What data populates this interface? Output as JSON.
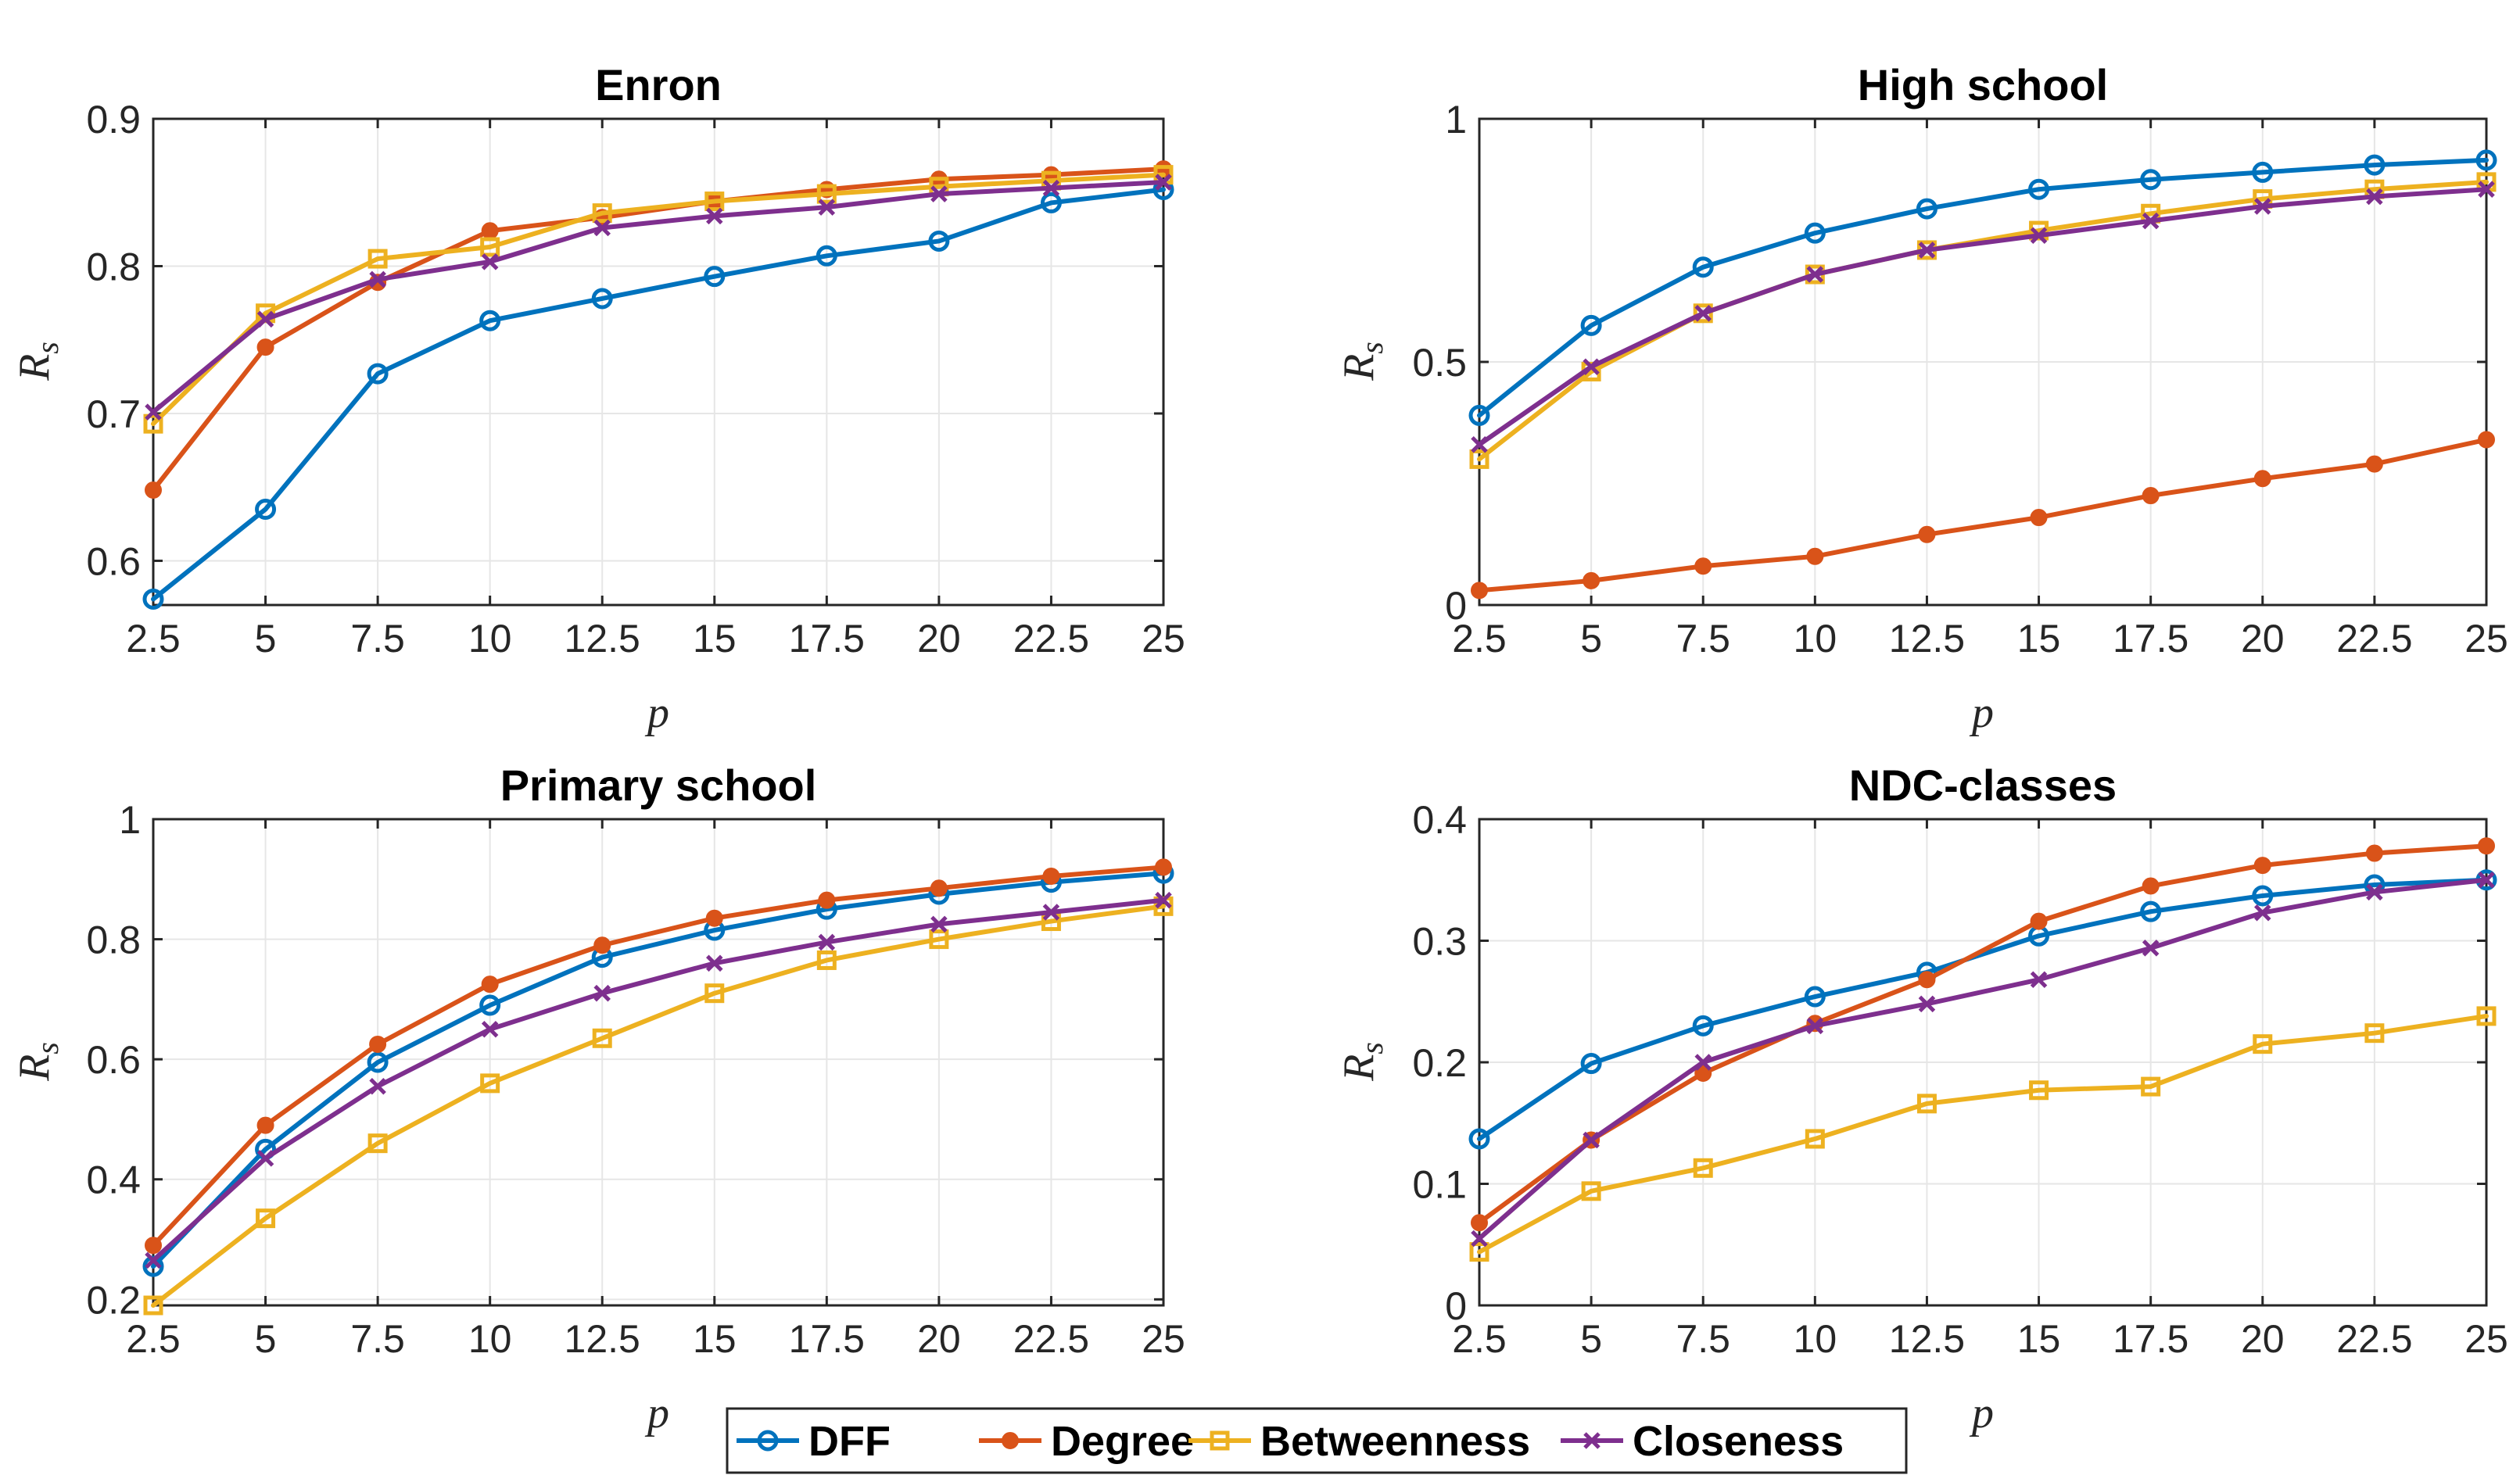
{
  "chart_data": [
    {
      "type": "line",
      "title": "Enron",
      "xlabel": "p",
      "ylabel": "R",
      "ylabel_sub": "s",
      "x": [
        2.5,
        5,
        7.5,
        10,
        12.5,
        15,
        17.5,
        20,
        22.5,
        25
      ],
      "xticks": [
        "2.5",
        "5",
        "7.5",
        "10",
        "12.5",
        "15",
        "17.5",
        "20",
        "22.5",
        "25"
      ],
      "ylim": [
        0.57,
        0.9
      ],
      "yticks": [
        0.6,
        0.7,
        0.8,
        0.9
      ],
      "yticklabels": [
        "0.6",
        "0.7",
        "0.8",
        "0.9"
      ],
      "grid": true,
      "series": [
        {
          "name": "DFF",
          "values": [
            0.574,
            0.635,
            0.727,
            0.763,
            0.778,
            0.793,
            0.807,
            0.817,
            0.843,
            0.852
          ]
        },
        {
          "name": "Degree",
          "values": [
            0.648,
            0.745,
            0.789,
            0.824,
            0.833,
            0.844,
            0.852,
            0.859,
            0.862,
            0.866
          ]
        },
        {
          "name": "Betweenness",
          "values": [
            0.693,
            0.768,
            0.805,
            0.813,
            0.836,
            0.844,
            0.849,
            0.854,
            0.858,
            0.862
          ]
        },
        {
          "name": "Closeness",
          "values": [
            0.701,
            0.764,
            0.791,
            0.803,
            0.826,
            0.834,
            0.84,
            0.849,
            0.853,
            0.857
          ]
        }
      ]
    },
    {
      "type": "line",
      "title": "High school",
      "xlabel": "p",
      "ylabel": "R",
      "ylabel_sub": "s",
      "x": [
        2.5,
        5,
        7.5,
        10,
        12.5,
        15,
        17.5,
        20,
        22.5,
        25
      ],
      "xticks": [
        "2.5",
        "5",
        "7.5",
        "10",
        "12.5",
        "15",
        "17.5",
        "20",
        "22.5",
        "25"
      ],
      "ylim": [
        0,
        1
      ],
      "yticks": [
        0,
        0.5,
        1
      ],
      "yticklabels": [
        "0",
        "0.5",
        "1"
      ],
      "grid": true,
      "series": [
        {
          "name": "DFF",
          "values": [
            0.39,
            0.575,
            0.695,
            0.765,
            0.815,
            0.855,
            0.875,
            0.89,
            0.905,
            0.915
          ]
        },
        {
          "name": "Degree",
          "values": [
            0.03,
            0.05,
            0.08,
            0.1,
            0.145,
            0.18,
            0.225,
            0.26,
            0.29,
            0.34
          ]
        },
        {
          "name": "Betweenness",
          "values": [
            0.3,
            0.48,
            0.6,
            0.68,
            0.73,
            0.77,
            0.805,
            0.835,
            0.855,
            0.87
          ]
        },
        {
          "name": "Closeness",
          "values": [
            0.33,
            0.49,
            0.6,
            0.68,
            0.73,
            0.76,
            0.79,
            0.82,
            0.84,
            0.855
          ]
        }
      ]
    },
    {
      "type": "line",
      "title": "Primary school",
      "xlabel": "p",
      "ylabel": "R",
      "ylabel_sub": "s",
      "x": [
        2.5,
        5,
        7.5,
        10,
        12.5,
        15,
        17.5,
        20,
        22.5,
        25
      ],
      "xticks": [
        "2.5",
        "5",
        "7.5",
        "10",
        "12.5",
        "15",
        "17.5",
        "20",
        "22.5",
        "25"
      ],
      "ylim": [
        0.19,
        1
      ],
      "yticks": [
        0.2,
        0.4,
        0.6,
        0.8,
        1
      ],
      "yticklabels": [
        "0.2",
        "0.4",
        "0.6",
        "0.8",
        "1"
      ],
      "grid": true,
      "series": [
        {
          "name": "DFF",
          "values": [
            0.255,
            0.45,
            0.595,
            0.69,
            0.77,
            0.815,
            0.85,
            0.875,
            0.895,
            0.91
          ]
        },
        {
          "name": "Degree",
          "values": [
            0.29,
            0.49,
            0.625,
            0.725,
            0.79,
            0.835,
            0.865,
            0.885,
            0.905,
            0.92
          ]
        },
        {
          "name": "Betweenness",
          "values": [
            0.19,
            0.335,
            0.46,
            0.56,
            0.635,
            0.71,
            0.765,
            0.8,
            0.83,
            0.855
          ]
        },
        {
          "name": "Closeness",
          "values": [
            0.265,
            0.435,
            0.555,
            0.65,
            0.71,
            0.76,
            0.795,
            0.825,
            0.845,
            0.865
          ]
        }
      ]
    },
    {
      "type": "line",
      "title": "NDC-classes",
      "xlabel": "p",
      "ylabel": "R",
      "ylabel_sub": "s",
      "x": [
        2.5,
        5,
        7.5,
        10,
        12.5,
        15,
        17.5,
        20,
        22.5,
        25
      ],
      "xticks": [
        "2.5",
        "5",
        "7.5",
        "10",
        "12.5",
        "15",
        "17.5",
        "20",
        "22.5",
        "25"
      ],
      "ylim": [
        0,
        0.4
      ],
      "yticks": [
        0,
        0.1,
        0.2,
        0.3,
        0.4
      ],
      "yticklabels": [
        "0",
        "0.1",
        "0.2",
        "0.3",
        "0.4"
      ],
      "grid": true,
      "series": [
        {
          "name": "DFF",
          "values": [
            0.137,
            0.199,
            0.23,
            0.254,
            0.274,
            0.304,
            0.324,
            0.337,
            0.346,
            0.35
          ]
        },
        {
          "name": "Degree",
          "values": [
            0.068,
            0.136,
            0.191,
            0.232,
            0.268,
            0.316,
            0.345,
            0.362,
            0.372,
            0.378
          ]
        },
        {
          "name": "Betweenness",
          "values": [
            0.044,
            0.094,
            0.113,
            0.137,
            0.166,
            0.177,
            0.18,
            0.215,
            0.224,
            0.238
          ]
        },
        {
          "name": "Closeness",
          "values": [
            0.055,
            0.136,
            0.2,
            0.23,
            0.248,
            0.268,
            0.294,
            0.323,
            0.34,
            0.35
          ]
        }
      ]
    }
  ],
  "legend": {
    "placement": "bottom-center",
    "items": [
      {
        "name": "DFF",
        "color": "#0072BD",
        "marker": "circle"
      },
      {
        "name": "Degree",
        "color": "#D95319",
        "marker": "dot"
      },
      {
        "name": "Betweenness",
        "color": "#EDB120",
        "marker": "square"
      },
      {
        "name": "Closeness",
        "color": "#7E2F8E",
        "marker": "x"
      }
    ]
  }
}
